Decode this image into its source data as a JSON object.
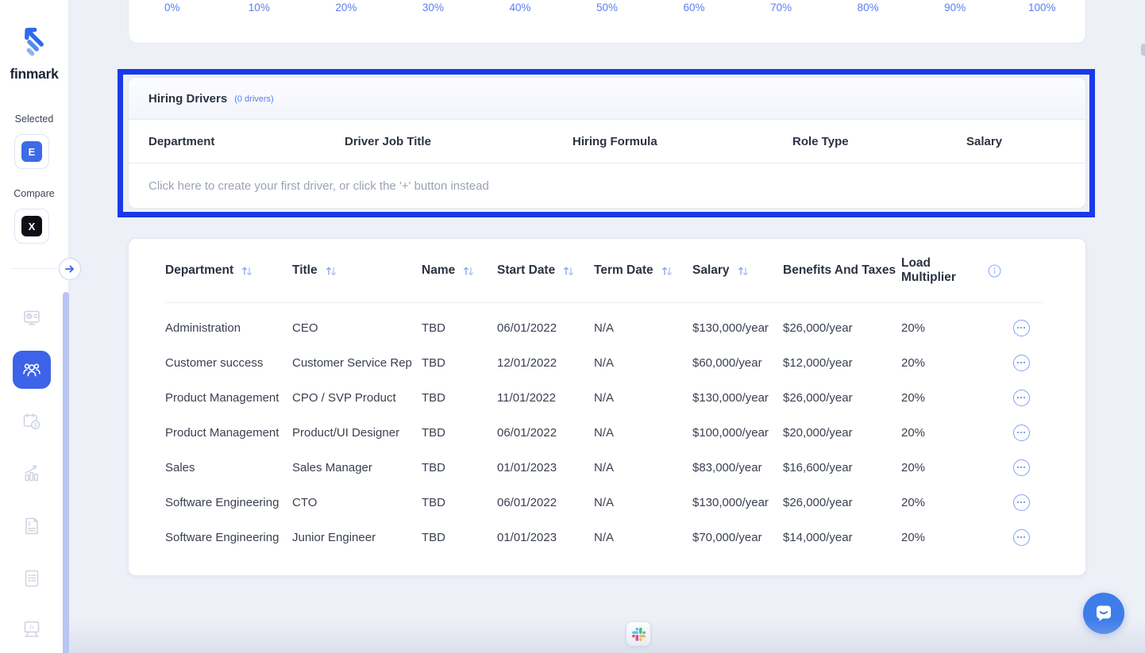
{
  "app": {
    "brand": "finmark"
  },
  "colors": {
    "primary_blue": "#3c63e8",
    "accent_blue": "#5a7ef0",
    "highlight_border": "#1a39e8",
    "page_bg": "#eef0f7",
    "chat_bubble": "#3e7de9",
    "badge_selected_bg": "#3b6be8",
    "badge_compare_bg": "#0d0f14",
    "slack_colors": [
      "#36C5F0",
      "#2EB67D",
      "#ECB22E",
      "#E01E5A"
    ]
  },
  "sidebar": {
    "selected_label": "Selected",
    "selected_badge": "E",
    "compare_label": "Compare",
    "compare_badge": "X",
    "collapse_icon": "arrow-right-icon",
    "nav_icons": [
      "dashboard-icon",
      "team-icon",
      "payroll-calendar-icon",
      "metrics-chart-icon",
      "invoice-dollar-icon",
      "report-doc-icon",
      "formulas-board-icon"
    ],
    "active_nav": "team-icon"
  },
  "scale_card": {
    "ticks": [
      "0%",
      "10%",
      "20%",
      "30%",
      "40%",
      "50%",
      "60%",
      "70%",
      "80%",
      "90%",
      "100%"
    ]
  },
  "hiring_drivers": {
    "title": "Hiring Drivers",
    "count_label": "(0 drivers)",
    "columns": [
      "Department",
      "Driver Job Title",
      "Hiring Formula",
      "Role Type",
      "Salary"
    ],
    "empty_message": "Click here to create your first driver, or click the '+' button instead"
  },
  "roles_table": {
    "columns": [
      {
        "label": "Department",
        "sortable": true,
        "info": false
      },
      {
        "label": "Title",
        "sortable": true,
        "info": false
      },
      {
        "label": "Name",
        "sortable": true,
        "info": false
      },
      {
        "label": "Start Date",
        "sortable": true,
        "info": false
      },
      {
        "label": "Term Date",
        "sortable": true,
        "info": false
      },
      {
        "label": "Salary",
        "sortable": true,
        "info": false
      },
      {
        "label": "Benefits And Taxes",
        "sortable": false,
        "info": false
      },
      {
        "label": "Load Multiplier",
        "sortable": false,
        "info": true
      }
    ],
    "rows": [
      {
        "department": "Administration",
        "title": "CEO",
        "name": "TBD",
        "start_date": "06/01/2022",
        "term_date": "N/A",
        "salary": "$130,000/year",
        "benefits": "$26,000/year",
        "load": "20%"
      },
      {
        "department": "Customer success",
        "title": "Customer Service Rep",
        "name": "TBD",
        "start_date": "12/01/2022",
        "term_date": "N/A",
        "salary": "$60,000/year",
        "benefits": "$12,000/year",
        "load": "20%"
      },
      {
        "department": "Product Management",
        "title": "CPO / SVP Product",
        "name": "TBD",
        "start_date": "11/01/2022",
        "term_date": "N/A",
        "salary": "$130,000/year",
        "benefits": "$26,000/year",
        "load": "20%"
      },
      {
        "department": "Product Management",
        "title": "Product/UI Designer",
        "name": "TBD",
        "start_date": "06/01/2022",
        "term_date": "N/A",
        "salary": "$100,000/year",
        "benefits": "$20,000/year",
        "load": "20%"
      },
      {
        "department": "Sales",
        "title": "Sales Manager",
        "name": "TBD",
        "start_date": "01/01/2023",
        "term_date": "N/A",
        "salary": "$83,000/year",
        "benefits": "$16,600/year",
        "load": "20%"
      },
      {
        "department": "Software Engineering",
        "title": "CTO",
        "name": "TBD",
        "start_date": "06/01/2022",
        "term_date": "N/A",
        "salary": "$130,000/year",
        "benefits": "$26,000/year",
        "load": "20%"
      },
      {
        "department": "Software Engineering",
        "title": "Junior Engineer",
        "name": "TBD",
        "start_date": "01/01/2023",
        "term_date": "N/A",
        "salary": "$70,000/year",
        "benefits": "$14,000/year",
        "load": "20%"
      }
    ]
  },
  "floating": {
    "slack_icon": "slack-icon",
    "chat_icon": "chat-bubble-icon"
  }
}
